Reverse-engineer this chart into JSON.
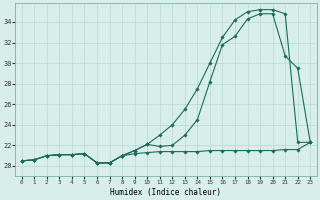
{
  "xlabel": "Humidex (Indice chaleur)",
  "bg_color": "#d8eeeb",
  "grid_color": "#b8d8d3",
  "line_color": "#1b6b5a",
  "x_ticks": [
    0,
    1,
    2,
    3,
    4,
    5,
    6,
    7,
    8,
    9,
    10,
    11,
    12,
    13,
    14,
    15,
    16,
    17,
    18,
    19,
    20,
    21,
    22,
    23
  ],
  "y_ticks": [
    20,
    22,
    24,
    26,
    28,
    30,
    32,
    34
  ],
  "xlim": [
    -0.5,
    23.5
  ],
  "ylim": [
    19.0,
    35.8
  ],
  "line1_x": [
    0,
    1,
    2,
    3,
    4,
    5,
    6,
    7,
    8,
    9,
    10,
    11,
    12,
    13,
    14,
    15,
    16,
    17,
    18,
    19,
    20,
    21,
    22,
    23
  ],
  "line1_y": [
    20.5,
    20.6,
    21.0,
    21.1,
    21.1,
    21.2,
    20.3,
    20.3,
    21.0,
    21.2,
    21.3,
    21.4,
    21.4,
    21.4,
    21.4,
    21.5,
    21.5,
    21.5,
    21.5,
    21.5,
    21.5,
    21.6,
    21.6,
    22.3
  ],
  "line2_x": [
    0,
    1,
    2,
    3,
    4,
    5,
    6,
    7,
    8,
    9,
    10,
    11,
    12,
    13,
    14,
    15,
    16,
    17,
    18,
    19,
    20,
    21,
    22,
    23
  ],
  "line2_y": [
    20.5,
    20.6,
    21.0,
    21.1,
    21.1,
    21.2,
    20.3,
    20.3,
    21.0,
    21.5,
    22.1,
    21.9,
    22.0,
    23.0,
    24.5,
    28.2,
    31.8,
    32.6,
    34.3,
    34.8,
    34.8,
    30.7,
    29.5,
    22.3
  ],
  "line3_x": [
    0,
    1,
    2,
    3,
    4,
    5,
    6,
    7,
    8,
    9,
    10,
    11,
    12,
    13,
    14,
    15,
    16,
    17,
    18,
    19,
    20,
    21,
    22,
    23
  ],
  "line3_y": [
    20.5,
    20.6,
    21.0,
    21.1,
    21.1,
    21.2,
    20.3,
    20.3,
    21.0,
    21.5,
    22.1,
    23.0,
    24.0,
    25.5,
    27.5,
    30.0,
    32.5,
    34.2,
    35.0,
    35.2,
    35.2,
    34.8,
    22.3,
    22.3
  ]
}
